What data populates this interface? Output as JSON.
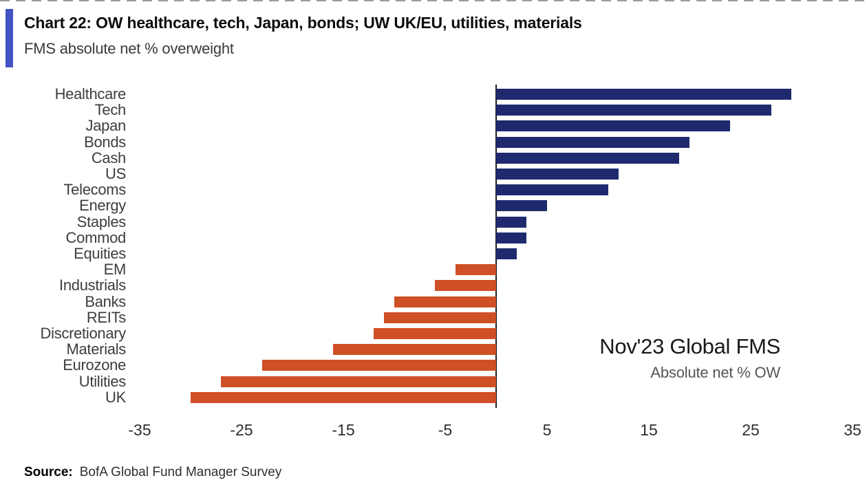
{
  "page": {
    "background": "#ffffff",
    "accent_color": "#4253c4",
    "top_edge_color": "#9a9aa4"
  },
  "header": {
    "title": "Chart 22: OW healthcare, tech, Japan, bonds; UW UK/EU, utilities, materials",
    "subtitle": "FMS absolute net % overweight"
  },
  "chart_data": {
    "type": "bar",
    "orientation": "horizontal",
    "annotation_title": "Nov'23 Global FMS",
    "annotation_subtitle": "Absolute net % OW",
    "categories": [
      "Healthcare",
      "Tech",
      "Japan",
      "Bonds",
      "Cash",
      "US",
      "Telecoms",
      "Energy",
      "Staples",
      "Commod",
      "Equities",
      "EM",
      "Industrials",
      "Banks",
      "REITs",
      "Discretionary",
      "Materials",
      "Eurozone",
      "Utilities",
      "UK"
    ],
    "values": [
      29,
      27,
      23,
      19,
      18,
      12,
      11,
      5,
      3,
      3,
      2,
      -4,
      -6,
      -10,
      -11,
      -12,
      -16,
      -23,
      -27,
      -30
    ],
    "xticks": [
      -35,
      -25,
      -15,
      -5,
      5,
      15,
      25,
      35
    ],
    "xlim": [
      -35.2,
      35.5
    ],
    "unit": "net % overweight",
    "grid": false,
    "legend": false,
    "positive_color": "#1f2a6e",
    "negative_color": "#cf4f26",
    "axis_line_color": "#1c1c1c"
  },
  "footer": {
    "source_label": "Source:",
    "source_text": "BofA Global Fund Manager Survey"
  }
}
